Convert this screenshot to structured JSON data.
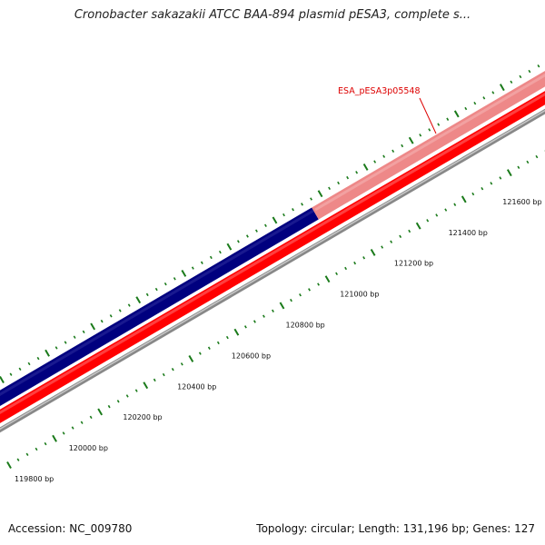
{
  "title": "Cronobacter sakazakii ATCC BAA-894 plasmid pESA3, complete s...",
  "map": {
    "tick_labels": [
      "119800 bp",
      "120000 bp",
      "120200 bp",
      "120400 bp",
      "120600 bp",
      "120800 bp",
      "121000 bp",
      "121200 bp",
      "121400 bp",
      "121600 bp"
    ],
    "gene_label": "ESA_pESA3p05548",
    "colors": {
      "forward_feature": "#00007f",
      "highlighted_feature": "#ee8888",
      "reverse_feature": "#ff0000",
      "backbone": "#888888",
      "ticks": "#1a7a1a",
      "label": "#dd0000"
    }
  },
  "footer": {
    "accession": "Accession: NC_009780",
    "topology": "Topology: circular; Length: 131,196 bp; Genes: 127"
  }
}
